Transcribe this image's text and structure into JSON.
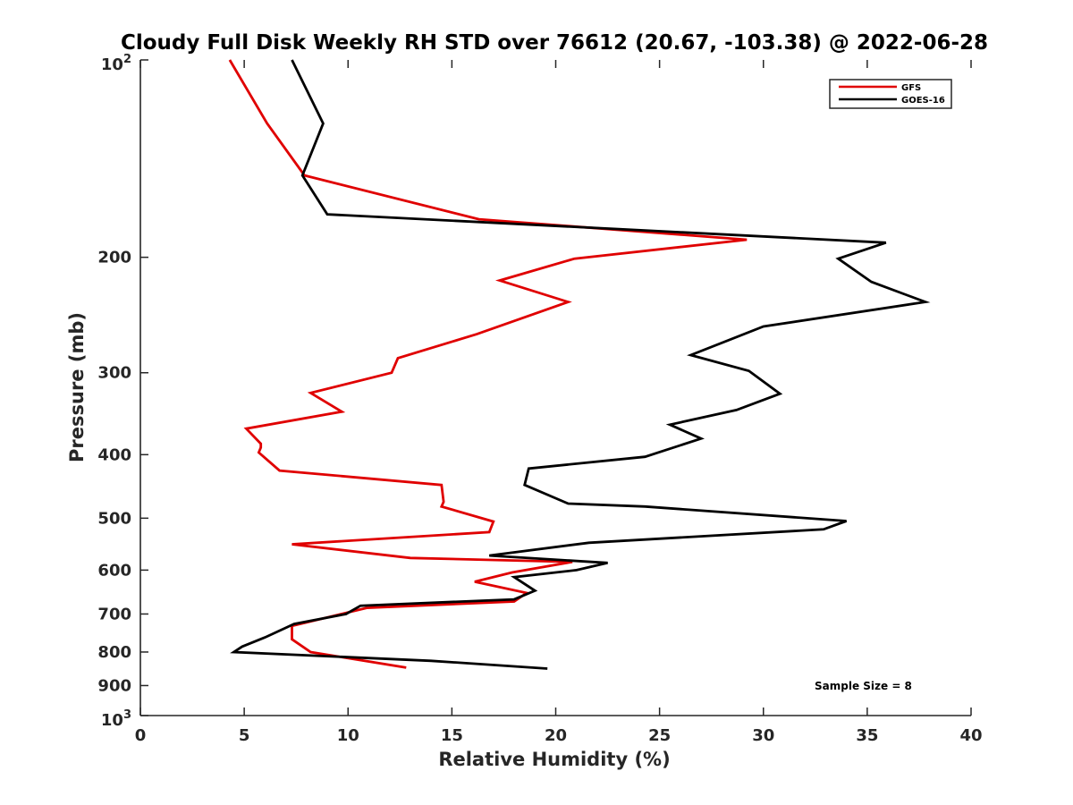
{
  "chart_data": {
    "type": "line",
    "title": "Cloudy Full Disk Weekly RH STD over 76612 (20.67, -103.38) @ 2022-06-28",
    "xlabel": "Relative Humidity (%)",
    "ylabel": "Pressure (mb)",
    "xlim": [
      0,
      40
    ],
    "ylim": [
      100,
      1000
    ],
    "yscale": "log",
    "yreversed": true,
    "x_ticks": [
      0,
      5,
      10,
      15,
      20,
      25,
      30,
      35,
      40
    ],
    "x_tick_labels": [
      "0",
      "5",
      "10",
      "15",
      "20",
      "25",
      "30",
      "35",
      "40"
    ],
    "y_ticks": [
      200,
      300,
      400,
      500,
      600,
      700,
      800,
      900
    ],
    "y_tick_labels": [
      "200",
      "300",
      "400",
      "500",
      "600",
      "700",
      "800",
      "900"
    ],
    "y_limit_labels": {
      "top_base": "10",
      "top_exp": "2",
      "bottom_base": "10",
      "bottom_exp": "3"
    },
    "legend": {
      "position": "top-right",
      "entries": [
        "GFS",
        "GOES-16"
      ]
    },
    "annotation": "Sample Size = 8",
    "series": [
      {
        "name": "GFS",
        "color": "#e00000",
        "points": [
          [
            4.3,
            100
          ],
          [
            6.1,
            125
          ],
          [
            7.9,
            150
          ],
          [
            16.3,
            175
          ],
          [
            29.2,
            188
          ],
          [
            20.9,
            201
          ],
          [
            17.3,
            217
          ],
          [
            20.6,
            234
          ],
          [
            16.2,
            262
          ],
          [
            12.4,
            285
          ],
          [
            12.1,
            300
          ],
          [
            8.2,
            322
          ],
          [
            9.7,
            344
          ],
          [
            5.1,
            365
          ],
          [
            5.8,
            385
          ],
          [
            5.8,
            390
          ],
          [
            5.7,
            397
          ],
          [
            6.7,
            423
          ],
          [
            14.5,
            445
          ],
          [
            14.6,
            472
          ],
          [
            14.5,
            480
          ],
          [
            17.0,
            506
          ],
          [
            16.8,
            525
          ],
          [
            7.3,
            548
          ],
          [
            13.0,
            575
          ],
          [
            20.8,
            583
          ],
          [
            17.9,
            605
          ],
          [
            16.1,
            625
          ],
          [
            18.6,
            650
          ],
          [
            18.0,
            670
          ],
          [
            10.9,
            685
          ],
          [
            7.3,
            730
          ],
          [
            7.3,
            765
          ],
          [
            8.2,
            800
          ],
          [
            12.8,
            845
          ]
        ]
      },
      {
        "name": "GOES-16",
        "color": "#000000",
        "points": [
          [
            7.3,
            100
          ],
          [
            8.8,
            125
          ],
          [
            7.8,
            150
          ],
          [
            9.0,
            172
          ],
          [
            35.9,
            190
          ],
          [
            33.6,
            201
          ],
          [
            35.2,
            218
          ],
          [
            37.8,
            234
          ],
          [
            30.0,
            255
          ],
          [
            26.5,
            282
          ],
          [
            29.3,
            298
          ],
          [
            30.8,
            323
          ],
          [
            28.7,
            342
          ],
          [
            25.5,
            360
          ],
          [
            27.0,
            378
          ],
          [
            24.3,
            403
          ],
          [
            18.7,
            420
          ],
          [
            18.5,
            445
          ],
          [
            20.6,
            475
          ],
          [
            24.3,
            480
          ],
          [
            34.0,
            505
          ],
          [
            32.9,
            520
          ],
          [
            21.6,
            545
          ],
          [
            16.8,
            570
          ],
          [
            22.5,
            585
          ],
          [
            21.0,
            600
          ],
          [
            18.0,
            615
          ],
          [
            19.0,
            645
          ],
          [
            18.0,
            665
          ],
          [
            10.6,
            680
          ],
          [
            9.9,
            700
          ],
          [
            7.4,
            725
          ],
          [
            6.0,
            760
          ],
          [
            4.9,
            785
          ],
          [
            4.5,
            800
          ],
          [
            14.0,
            825
          ],
          [
            19.6,
            848
          ]
        ]
      }
    ]
  }
}
